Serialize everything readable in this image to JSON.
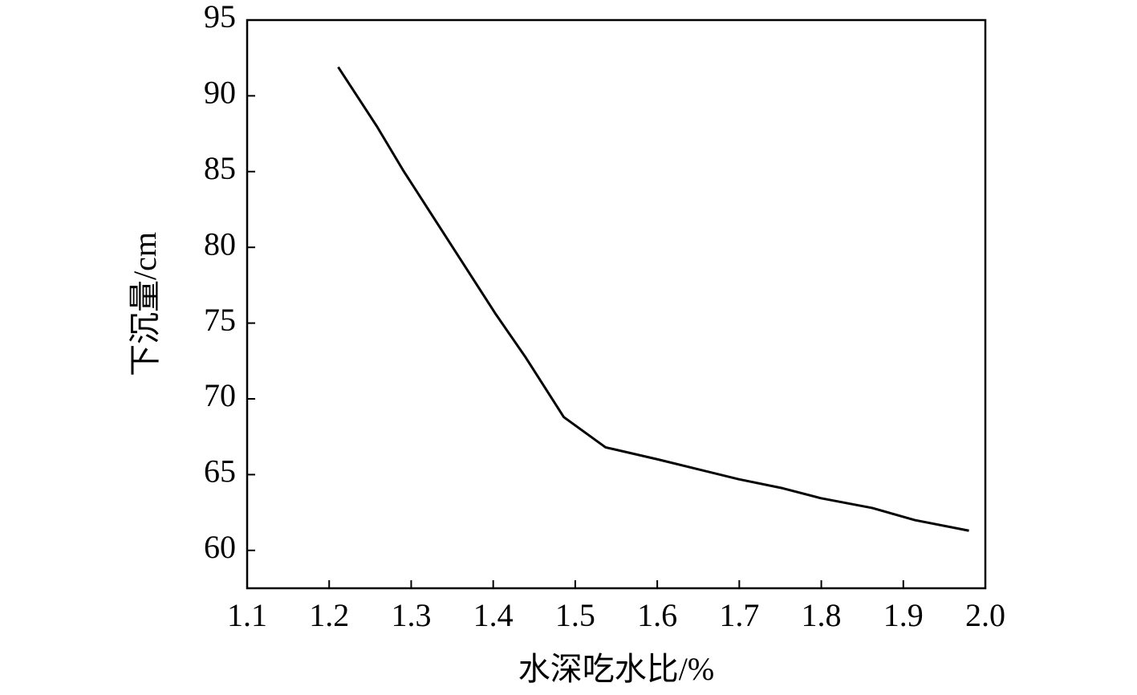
{
  "chart_data": {
    "type": "line",
    "x_label": "水深吃水比/%",
    "y_label": "下沉量/cm",
    "x": [
      1.211,
      1.258,
      1.29,
      1.403,
      1.44,
      1.486,
      1.537,
      1.601,
      1.699,
      1.753,
      1.799,
      1.862,
      1.914,
      1.98
    ],
    "values": [
      91.9,
      88.0,
      85.1,
      75.6,
      72.7,
      68.8,
      66.8,
      66.0,
      64.7,
      64.1,
      63.45,
      62.8,
      62.0,
      61.3
    ],
    "color": "#000000",
    "xlim": [
      1.1,
      2.0
    ],
    "ylim": [
      57.5,
      95
    ],
    "xticks": [
      1.1,
      1.2,
      1.3,
      1.4,
      1.5,
      1.6,
      1.7,
      1.8,
      1.9,
      {
        "value": 2.0,
        "label": "2.0"
      }
    ],
    "yticks": [
      60,
      65,
      70,
      75,
      80,
      85,
      90,
      95
    ]
  }
}
